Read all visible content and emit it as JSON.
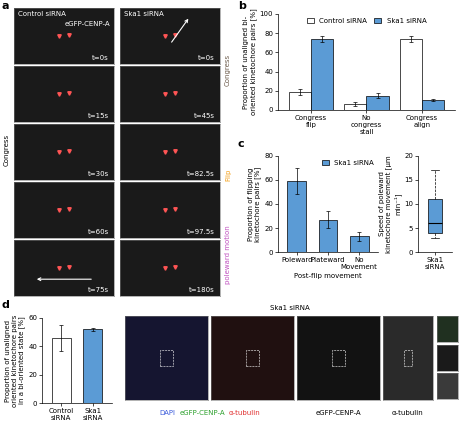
{
  "panel_labels": [
    "a",
    "b",
    "c",
    "d"
  ],
  "panel_a": {
    "columns": [
      {
        "title": "Control siRNA",
        "channel": "eGFP-CENP-A",
        "times": [
          "t=0s",
          "t=15s",
          "t=30s",
          "t=60s",
          "t=75s"
        ]
      },
      {
        "title": "Ska1 siRNA",
        "times": [
          "t=0s",
          "t=45s",
          "t=82.5s",
          "t=97.5s",
          "t=180s"
        ]
      }
    ],
    "left_label": "Congress",
    "right_labels": [
      {
        "text": "Congress",
        "color": "#6b5a4a"
      },
      {
        "text": "Flip",
        "color": "#f39c12"
      },
      {
        "text": "poleward motion",
        "color": "#c050c0"
      }
    ]
  },
  "chart_data": [
    {
      "type": "bar",
      "categories": [
        "Congress flip",
        "No congress stall",
        "Congress align"
      ],
      "series": [
        {
          "name": "Control siRNA",
          "color": "#ffffff",
          "values": [
            19,
            6,
            74
          ],
          "errors": [
            3,
            2,
            3
          ]
        },
        {
          "name": "Ska1 siRNA",
          "color": "#5b9bd5",
          "values": [
            74,
            15,
            10
          ],
          "errors": [
            3,
            3,
            1
          ]
        }
      ],
      "y_label": "Proportion of unaligned bi-oriented kinetochore pairs [%]",
      "ylim": [
        0,
        100
      ],
      "yticks": [
        0,
        20,
        40,
        60,
        80,
        100
      ],
      "legend": "upper center"
    },
    {
      "type": "bar",
      "categories": [
        "Poleward",
        "Plateward",
        "No Movement"
      ],
      "series": [
        {
          "name": "Ska1 siRNA",
          "color": "#5b9bd5",
          "values": [
            59,
            27,
            13
          ],
          "errors": [
            11,
            7,
            4
          ]
        }
      ],
      "x_label": "Post-flip movement",
      "y_label": "Proportion of flipping kinetochore pairs [%]",
      "ylim": [
        0,
        80
      ],
      "yticks": [
        0,
        20,
        40,
        60,
        80
      ],
      "legend": "upper right"
    },
    {
      "type": "box",
      "categories": [
        "Ska1 siRNA"
      ],
      "box": {
        "whislo": 3,
        "q1": 4,
        "med": 6,
        "q3": 11,
        "whishi": 17
      },
      "color": "#5b9bd5",
      "y_label": "Speed of poleward kinetochore movement [μm min⁻¹]",
      "ylim": [
        0,
        20
      ],
      "yticks": [
        0,
        5,
        10,
        15,
        20
      ]
    },
    {
      "type": "bar",
      "categories": [
        "Control siRNA",
        "Ska1 siRNA"
      ],
      "values": [
        46,
        52
      ],
      "errors": [
        9,
        1
      ],
      "colors": [
        "#ffffff",
        "#5b9bd5"
      ],
      "y_label": "Proportion of unaligned oriented kinetochore pairs in a bi-oriented state [%]",
      "ylim": [
        0,
        60
      ],
      "yticks": [
        0,
        20,
        40,
        60
      ]
    }
  ],
  "panel_d_images": {
    "title": "Ska1 siRNA",
    "captions": [
      [
        {
          "text": "DAPI",
          "color": "#3b5bdb"
        },
        {
          "text": "eGFP-CENP-A",
          "color": "#2ca02c"
        },
        {
          "text": "α-tubulin",
          "color": "#e03030"
        }
      ],
      [
        {
          "text": "eGFP-CENP-A",
          "color": "#000000"
        }
      ],
      [
        {
          "text": "α-tubulin",
          "color": "#000000"
        }
      ]
    ]
  }
}
